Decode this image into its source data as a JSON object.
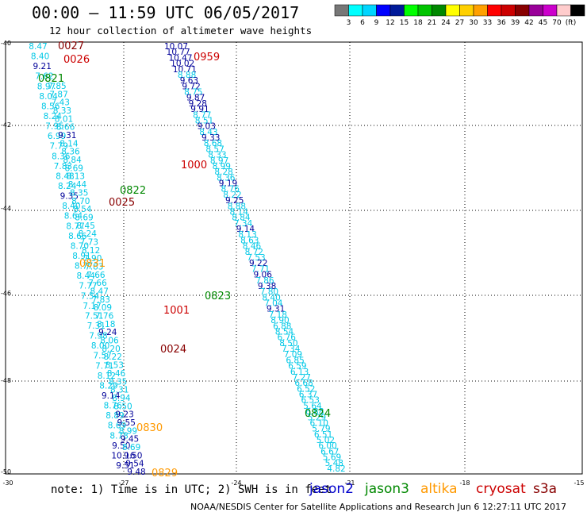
{
  "title": "00:00 – 11:59 UTC 06/05/2017",
  "subtitle": "12 hour collection of altimeter wave heights",
  "color_scale": {
    "colors": [
      "#777777",
      "#00ffff",
      "#00d5ff",
      "#0000ff",
      "#001a99",
      "#00ff00",
      "#00c400",
      "#008800",
      "#ffff00",
      "#ffd000",
      "#ffa000",
      "#ff0000",
      "#cc0000",
      "#880000",
      "#990099",
      "#cc00cc",
      "#ffcccc",
      "#000000"
    ],
    "labels": [
      "3",
      "6",
      "9",
      "12",
      "15",
      "18",
      "21",
      "24",
      "27",
      "30",
      "33",
      "36",
      "39",
      "42",
      "45",
      "70",
      "(ft)"
    ]
  },
  "axes": {
    "lat_labels": [
      "-40",
      "-42",
      "-44",
      "-46",
      "-48",
      "-50"
    ],
    "lon_labels": [
      "-30",
      "-27",
      "-24",
      "-21",
      "-18",
      "-15"
    ]
  },
  "note": "note: 1) Time is in UTC; 2) SWH is in feet",
  "legend": [
    {
      "name": "jason2",
      "color": "#0000cc"
    },
    {
      "name": "jason3",
      "color": "#008800"
    },
    {
      "name": "altika",
      "color": "#ff9900"
    },
    {
      "name": "cryosat",
      "color": "#cc0000"
    },
    {
      "name": "s3a",
      "color": "#880000"
    }
  ],
  "credit": "NOAA/NESDIS Center for Satellite Applications and Research   Jun  6 12:27:11 UTC 2017",
  "time_labels": [
    {
      "text": "0027",
      "color": "#880000"
    },
    {
      "text": "0026",
      "color": "#cc0000"
    },
    {
      "text": "0821",
      "color": "#008800"
    },
    {
      "text": "0959",
      "color": "#cc0000"
    },
    {
      "text": "1000",
      "color": "#cc0000"
    },
    {
      "text": "0822",
      "color": "#008800"
    },
    {
      "text": "0025",
      "color": "#880000"
    },
    {
      "text": "0831",
      "color": "#ff9900"
    },
    {
      "text": "0823",
      "color": "#008800"
    },
    {
      "text": "1001",
      "color": "#cc0000"
    },
    {
      "text": "0024",
      "color": "#880000"
    },
    {
      "text": "0824",
      "color": "#008800"
    },
    {
      "text": "0830",
      "color": "#ff9900"
    },
    {
      "text": "0829",
      "color": "#ff9900"
    }
  ],
  "wave_heights": {
    "track_west": [
      "8.47",
      "8.40",
      "9.21",
      "7.62",
      "8.97",
      "8.04",
      "8.56",
      "8.24",
      "7.95",
      "6.99",
      "7.79",
      "8.36",
      "7.83",
      "8.48",
      "8.24",
      "9.35",
      "8.40",
      "8.64",
      "8.77",
      "8.66",
      "8.70",
      "8.91",
      "8.77",
      "8.44",
      "7.77",
      "7.54",
      "7.17",
      "7.51",
      "7.31",
      "7.98",
      "8.00",
      "7.57",
      "7.71",
      "8.12",
      "8.29",
      "9.14",
      "8.76",
      "8.89",
      "8.69",
      "8.78",
      "9.50",
      "10.16",
      "9.51"
    ],
    "track_mid": [
      "7.85",
      "7.87",
      "7.43",
      "8.33",
      "8.01",
      "8.66",
      "9.31",
      "8.14",
      "8.36",
      "8.84",
      "8.69",
      "8.13",
      "8.44",
      "8.35",
      "8.70",
      "8.54",
      "8.69",
      "8.45",
      "8.24",
      "7.73",
      "8.12",
      "7.90",
      "7.83",
      "7.66",
      "7.66",
      "8.47",
      "7.83",
      "8.09",
      "7.76",
      "8.18",
      "9.24",
      "8.06",
      "8.20",
      "8.22",
      "8.53",
      "8.46",
      "8.35",
      "8.31",
      "8.94",
      "8.50",
      "9.23",
      "9.55",
      "8.99",
      "9.45",
      "8.69",
      "9.50",
      "9.54",
      "9.48"
    ],
    "track_east": [
      "10.07",
      "10.77",
      "10.47",
      "10.02",
      "10.71",
      "8.88",
      "9.63",
      "9.72",
      "8.75",
      "9.87",
      "9.28",
      "9.91",
      "8.77",
      "8.51",
      "9.03",
      "8.43",
      "9.33",
      "8.68",
      "8.57",
      "8.33",
      "8.97",
      "8.99",
      "8.28",
      "8.36",
      "9.19",
      "8.76",
      "8.22",
      "9.25",
      "8.88",
      "8.14",
      "8.84",
      "7.34",
      "9.14",
      "8.13",
      "8.63",
      "8.46",
      "8.72",
      "7.53",
      "9.22",
      "7.71",
      "9.06",
      "7.86",
      "9.38",
      "7.80",
      "8.40",
      "7.04",
      "9.31",
      "7.18",
      "8.90",
      "6.88",
      "8.54",
      "6.76",
      "8.50",
      "7.34",
      "7.09",
      "6.85",
      "6.59",
      "6.13",
      "7.27",
      "6.68",
      "6.52",
      "6.37",
      "6.53",
      "5.64",
      "6.88",
      "5.29",
      "6.10",
      "5.79",
      "6.51",
      "5.02",
      "6.00",
      "6.67",
      "5.69",
      "5.48",
      "4.82"
    ]
  }
}
